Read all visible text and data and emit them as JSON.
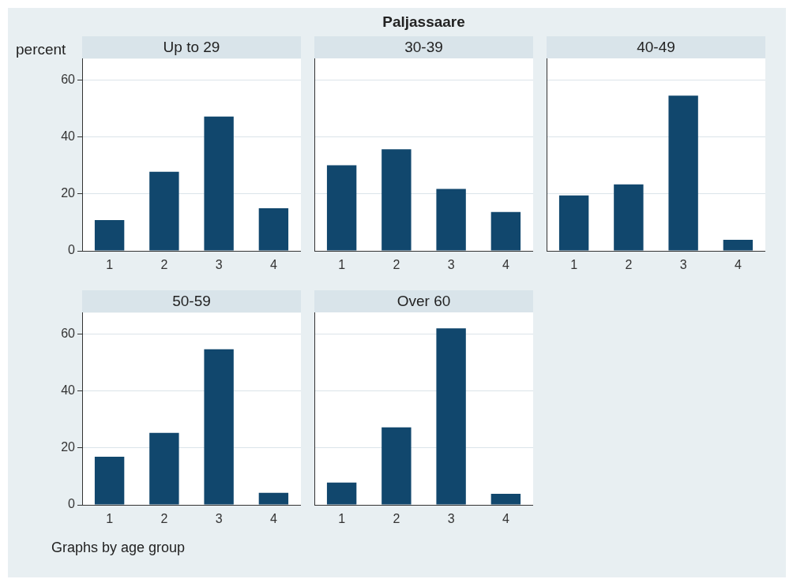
{
  "chart_data": [
    {
      "type": "bar",
      "title": "Up to 29",
      "ylabel": "percent",
      "annotations": [
        "Paljassaare",
        "Graphs by age group"
      ],
      "categories": [
        "1",
        "2",
        "3",
        "4"
      ],
      "values": [
        10.8,
        27.8,
        47.2,
        15
      ],
      "color": "#11476d",
      "ylim": [
        0,
        67.5
      ],
      "yticks": [
        0,
        20,
        40,
        60
      ],
      "grid": "y"
    },
    {
      "type": "bar",
      "title": "30-39",
      "categories": [
        "1",
        "2",
        "3",
        "4"
      ],
      "values": [
        30,
        35.6,
        21.7,
        13.6
      ],
      "color": "#11476d",
      "ylim": [
        0,
        67.5
      ],
      "yticks": [
        0,
        20,
        40,
        60
      ],
      "grid": "y",
      "tick_labels": "x"
    },
    {
      "type": "bar",
      "title": "40-49",
      "categories": [
        "1",
        "2",
        "3",
        "4"
      ],
      "values": [
        19.4,
        23.3,
        54.4,
        3.9
      ],
      "color": "#11476d",
      "ylim": [
        0,
        67.5
      ],
      "yticks": [
        0,
        20,
        40,
        60
      ],
      "grid": "y",
      "tick_labels": "x"
    },
    {
      "type": "bar",
      "title": "50-59",
      "categories": [
        "1",
        "2",
        "3",
        "4"
      ],
      "values": [
        16.9,
        25.3,
        54.7,
        4.2
      ],
      "color": "#11476d",
      "ylim": [
        0,
        67.5
      ],
      "yticks": [
        0,
        20,
        40,
        60
      ],
      "grid": "y"
    },
    {
      "type": "bar",
      "title": "Over 60",
      "categories": [
        "1",
        "2",
        "3",
        "4"
      ],
      "values": [
        7.8,
        27.2,
        61.9,
        3.9
      ],
      "color": "#11476d",
      "ylim": [
        0,
        67.5
      ],
      "yticks": [
        0,
        20,
        40,
        60
      ],
      "grid": "y",
      "tick_labels": "x"
    }
  ]
}
